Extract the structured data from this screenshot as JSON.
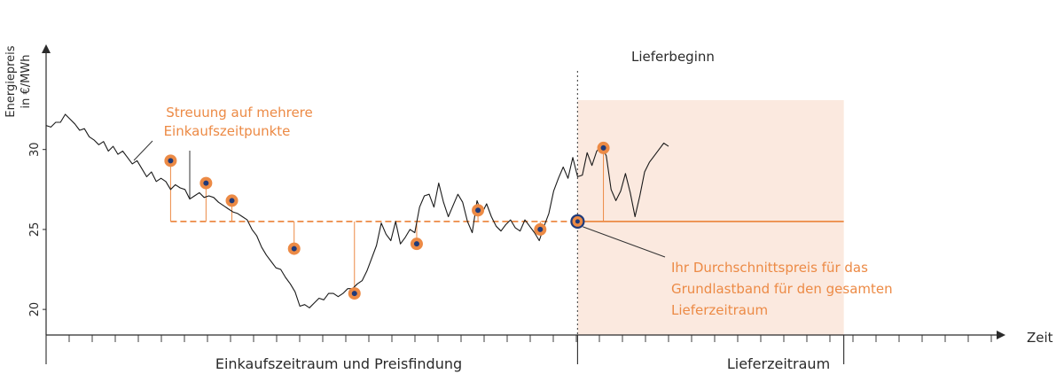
{
  "colors": {
    "accent": "#ec8a45",
    "marker_core": "#1f3a7a",
    "delivery_band": "#fbe9df",
    "price_line": "#1a1a1a",
    "axis": "#2a2a2a"
  },
  "chart_data": {
    "type": "line",
    "ylabel_line1": "Energiepreis",
    "ylabel_line2": "in €/MWh",
    "xlabel": "Zeit",
    "yticks": [
      20,
      25,
      30
    ],
    "ylim": [
      18.4,
      36.8
    ],
    "xlim": [
      0,
      100
    ],
    "grid": false,
    "legend": "none",
    "delivery_start_x": 55.5,
    "delivery_end_x": 83.3,
    "average_price": 25.5,
    "price_series": [
      [
        0,
        31.5
      ],
      [
        0.5,
        31.4
      ],
      [
        1,
        31.7
      ],
      [
        1.5,
        31.7
      ],
      [
        2,
        32.2
      ],
      [
        2.5,
        31.9
      ],
      [
        3,
        31.6
      ],
      [
        3.5,
        31.2
      ],
      [
        4,
        31.3
      ],
      [
        4.5,
        30.8
      ],
      [
        5,
        30.6
      ],
      [
        5.5,
        30.3
      ],
      [
        6,
        30.5
      ],
      [
        6.5,
        29.9
      ],
      [
        7,
        30.2
      ],
      [
        7.5,
        29.7
      ],
      [
        8,
        29.9
      ],
      [
        8.5,
        29.5
      ],
      [
        9,
        29.1
      ],
      [
        9.5,
        29.3
      ],
      [
        10,
        28.8
      ],
      [
        10.5,
        28.3
      ],
      [
        11,
        28.6
      ],
      [
        11.5,
        28.0
      ],
      [
        12,
        28.2
      ],
      [
        12.5,
        28.0
      ],
      [
        13,
        27.5
      ],
      [
        13.5,
        27.8
      ],
      [
        14,
        27.6
      ],
      [
        14.5,
        27.5
      ],
      [
        15,
        26.9
      ],
      [
        15.5,
        27.1
      ],
      [
        16,
        27.3
      ],
      [
        16.5,
        27.0
      ],
      [
        17,
        27.1
      ],
      [
        17.5,
        27.0
      ],
      [
        18,
        26.7
      ],
      [
        18.5,
        26.5
      ],
      [
        19,
        26.3
      ],
      [
        19.5,
        26.1
      ],
      [
        20,
        26.0
      ],
      [
        20.5,
        25.8
      ],
      [
        21,
        25.6
      ],
      [
        21.5,
        25.0
      ],
      [
        22,
        24.6
      ],
      [
        22.5,
        23.9
      ],
      [
        23,
        23.4
      ],
      [
        23.5,
        23.0
      ],
      [
        24,
        22.6
      ],
      [
        24.5,
        22.5
      ],
      [
        25,
        22.0
      ],
      [
        25.5,
        21.6
      ],
      [
        26,
        21.1
      ],
      [
        26.5,
        20.2
      ],
      [
        27,
        20.3
      ],
      [
        27.5,
        20.1
      ],
      [
        28,
        20.4
      ],
      [
        28.5,
        20.7
      ],
      [
        29,
        20.6
      ],
      [
        29.5,
        21.0
      ],
      [
        30,
        21.0
      ],
      [
        30.5,
        20.8
      ],
      [
        31,
        21.0
      ],
      [
        31.5,
        21.3
      ],
      [
        32,
        21.3
      ],
      [
        32.5,
        21.6
      ],
      [
        33,
        21.8
      ],
      [
        33.5,
        22.4
      ],
      [
        34,
        23.2
      ],
      [
        34.5,
        24.0
      ],
      [
        35,
        25.4
      ],
      [
        35.5,
        24.7
      ],
      [
        36,
        24.3
      ],
      [
        36.5,
        25.5
      ],
      [
        37,
        24.1
      ],
      [
        37.5,
        24.5
      ],
      [
        38,
        25.0
      ],
      [
        38.5,
        24.8
      ],
      [
        39,
        26.4
      ],
      [
        39.5,
        27.1
      ],
      [
        40,
        27.2
      ],
      [
        40.5,
        26.4
      ],
      [
        41,
        27.9
      ],
      [
        41.5,
        26.7
      ],
      [
        42,
        25.8
      ],
      [
        42.5,
        26.5
      ],
      [
        43,
        27.2
      ],
      [
        43.5,
        26.7
      ],
      [
        44,
        25.5
      ],
      [
        44.5,
        24.8
      ],
      [
        45,
        26.8
      ],
      [
        45.5,
        26.0
      ],
      [
        46,
        26.6
      ],
      [
        46.5,
        25.8
      ],
      [
        47,
        25.2
      ],
      [
        47.5,
        24.9
      ],
      [
        48,
        25.3
      ],
      [
        48.5,
        25.6
      ],
      [
        49,
        25.1
      ],
      [
        49.5,
        24.9
      ],
      [
        50,
        25.6
      ],
      [
        50.5,
        25.2
      ],
      [
        51,
        24.8
      ],
      [
        51.5,
        24.3
      ],
      [
        52,
        25.2
      ],
      [
        52.5,
        26.0
      ],
      [
        53,
        27.4
      ],
      [
        53.5,
        28.2
      ],
      [
        54,
        28.9
      ],
      [
        54.5,
        28.2
      ],
      [
        55,
        29.5
      ],
      [
        55.5,
        28.3
      ],
      [
        56,
        28.4
      ],
      [
        56.5,
        29.8
      ],
      [
        57,
        29.0
      ],
      [
        57.5,
        29.9
      ],
      [
        58,
        30.2
      ],
      [
        58.5,
        29.6
      ],
      [
        59,
        27.5
      ],
      [
        59.5,
        26.8
      ],
      [
        60,
        27.4
      ],
      [
        60.5,
        28.5
      ],
      [
        61,
        27.3
      ],
      [
        61.5,
        25.8
      ],
      [
        62,
        27.1
      ],
      [
        62.5,
        28.6
      ],
      [
        63,
        29.2
      ],
      [
        63.5,
        29.6
      ],
      [
        64,
        30.0
      ],
      [
        64.5,
        30.4
      ],
      [
        65,
        30.2
      ]
    ],
    "purchase_points": [
      {
        "x": 13.0,
        "y": 29.3
      },
      {
        "x": 16.7,
        "y": 27.9
      },
      {
        "x": 19.4,
        "y": 26.8
      },
      {
        "x": 25.9,
        "y": 23.8
      },
      {
        "x": 32.2,
        "y": 21.0
      },
      {
        "x": 38.7,
        "y": 24.1
      },
      {
        "x": 45.1,
        "y": 26.2
      },
      {
        "x": 51.6,
        "y": 25.0
      },
      {
        "x": 58.2,
        "y": 30.1
      }
    ],
    "annotations": {
      "delivery_start_label": "Lieferbeginn",
      "spread_line1": "Streuung auf mehrere",
      "spread_line2": "Einkaufszeitpunkte",
      "avg_line1": "Ihr Durchschnittspreis für das",
      "avg_line2": "Grundlastband für den gesamten",
      "avg_line3": "Lieferzeitraum"
    },
    "periods": {
      "purchase": "Einkaufszeitraum und Preisfindung",
      "delivery": "Lieferzeitraum"
    }
  }
}
